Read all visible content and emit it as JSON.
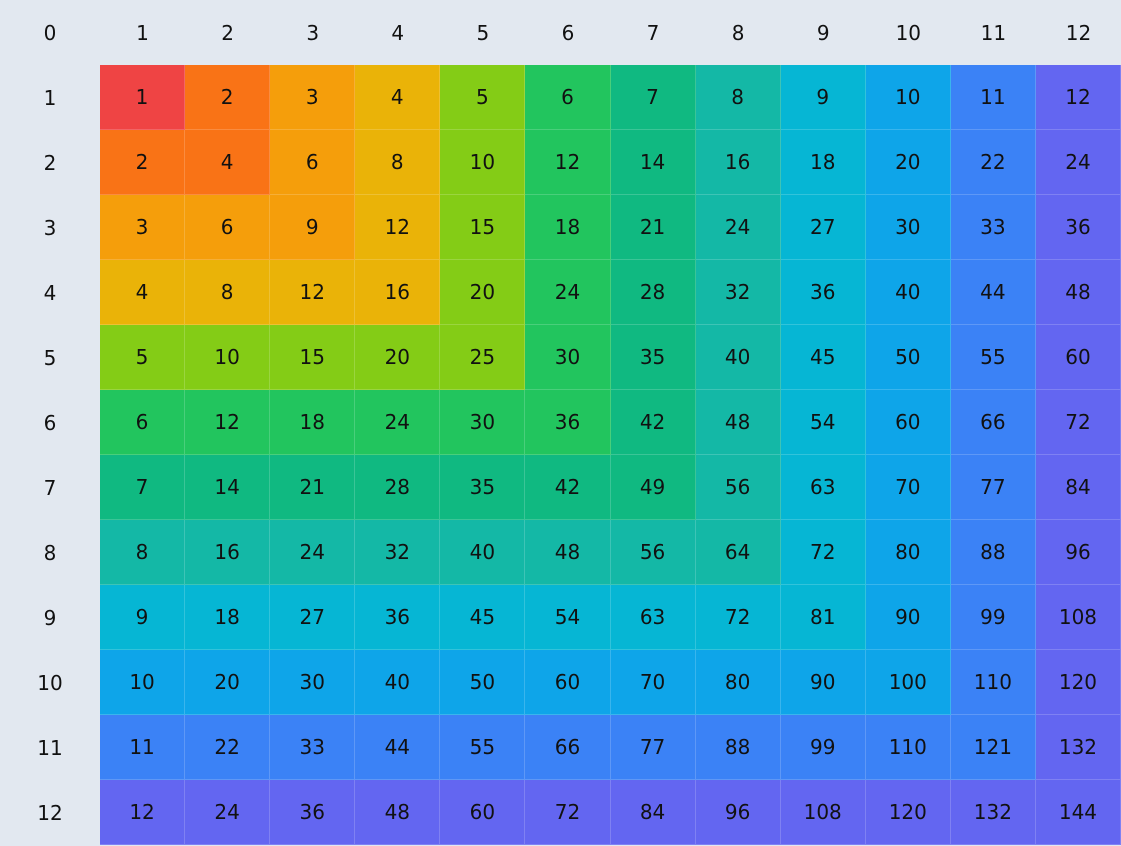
{
  "table": {
    "header": [
      0,
      1,
      2,
      3,
      4,
      5,
      6,
      7,
      8,
      9,
      10,
      11,
      12
    ],
    "rows": [
      {
        "label": 1,
        "cells": [
          1,
          2,
          3,
          4,
          5,
          6,
          7,
          8,
          9,
          10,
          11,
          12
        ]
      },
      {
        "label": 2,
        "cells": [
          2,
          4,
          6,
          8,
          10,
          12,
          14,
          16,
          18,
          20,
          22,
          24
        ]
      },
      {
        "label": 3,
        "cells": [
          3,
          6,
          9,
          12,
          15,
          18,
          21,
          24,
          27,
          30,
          33,
          36
        ]
      },
      {
        "label": 4,
        "cells": [
          4,
          8,
          12,
          16,
          20,
          24,
          28,
          32,
          36,
          40,
          44,
          48
        ]
      },
      {
        "label": 5,
        "cells": [
          5,
          10,
          15,
          20,
          25,
          30,
          35,
          40,
          45,
          50,
          55,
          60
        ]
      },
      {
        "label": 6,
        "cells": [
          6,
          12,
          18,
          24,
          30,
          36,
          42,
          48,
          54,
          60,
          66,
          72
        ]
      },
      {
        "label": 7,
        "cells": [
          7,
          14,
          21,
          28,
          35,
          42,
          49,
          56,
          63,
          70,
          77,
          84
        ]
      },
      {
        "label": 8,
        "cells": [
          8,
          16,
          24,
          32,
          40,
          48,
          56,
          64,
          72,
          80,
          88,
          96
        ]
      },
      {
        "label": 9,
        "cells": [
          9,
          18,
          27,
          36,
          45,
          54,
          63,
          72,
          81,
          90,
          99,
          108
        ]
      },
      {
        "label": 10,
        "cells": [
          10,
          20,
          30,
          40,
          50,
          60,
          70,
          80,
          90,
          100,
          110,
          120
        ]
      },
      {
        "label": 11,
        "cells": [
          11,
          22,
          33,
          44,
          55,
          66,
          77,
          88,
          99,
          110,
          121,
          132
        ]
      },
      {
        "label": 12,
        "cells": [
          12,
          24,
          36,
          48,
          60,
          72,
          84,
          96,
          108,
          120,
          132,
          144
        ]
      }
    ],
    "colors": [
      "#ef4444",
      "#f97316",
      "#f59e0b",
      "#eab308",
      "#84cc16",
      "#22c55e",
      "#10b981",
      "#14b8a6",
      "#06b6d4",
      "#0ea5e9",
      "#3b82f6",
      "#6366f1"
    ]
  }
}
